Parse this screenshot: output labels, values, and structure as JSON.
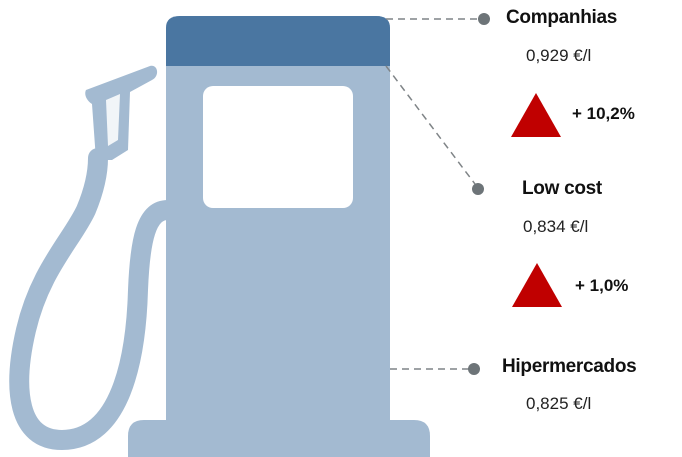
{
  "colors": {
    "pump_body": "#a3bad1",
    "pump_top": "#4a76a1",
    "pump_window": "#ffffff",
    "up_arrow": "#c00000",
    "connector": "#7f8487",
    "dot": "#6d7478"
  },
  "categories": [
    {
      "name": "Companhias",
      "price": "0,929 €/l",
      "change": "+ 10,2%",
      "trend": "up"
    },
    {
      "name": "Low cost",
      "price": "0,834 €/l",
      "change": "+ 1,0%",
      "trend": "up"
    },
    {
      "name": "Hipermercados",
      "price": "0,825 €/l"
    }
  ]
}
